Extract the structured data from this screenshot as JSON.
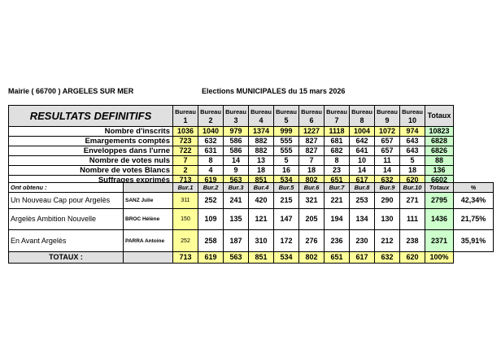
{
  "header": {
    "mairie": "Mairie ( 66700 ) ARGELES SUR MER",
    "election": "Elections MUNICIPALES du 15 mars 2026"
  },
  "top": {
    "title": "RESULTATS DEFINITIFS",
    "bureau_label": "Bureau",
    "bureaus": [
      "1",
      "2",
      "3",
      "4",
      "5",
      "6",
      "7",
      "8",
      "9",
      "10"
    ],
    "totals_label": "Totaux",
    "rows": [
      {
        "label": "Nombre d'inscrits",
        "values": [
          "1036",
          "1040",
          "979",
          "1374",
          "999",
          "1227",
          "1118",
          "1004",
          "1072",
          "974"
        ],
        "total": "10823"
      },
      {
        "label": "Emargements comptés",
        "values": [
          "723",
          "632",
          "586",
          "882",
          "555",
          "827",
          "681",
          "642",
          "657",
          "643"
        ],
        "total": "6828"
      },
      {
        "label": "Enveloppes dans l'urne",
        "values": [
          "722",
          "631",
          "586",
          "882",
          "555",
          "827",
          "682",
          "641",
          "657",
          "643"
        ],
        "total": "6826"
      },
      {
        "label": "Nombre de votes nuls",
        "values": [
          "7",
          "8",
          "14",
          "13",
          "5",
          "7",
          "8",
          "10",
          "11",
          "5"
        ],
        "total": "88"
      },
      {
        "label": "Nombre de votes Blancs",
        "values": [
          "2",
          "4",
          "9",
          "18",
          "16",
          "18",
          "23",
          "14",
          "14",
          "18"
        ],
        "total": "136"
      },
      {
        "label": "Suffrages exprimés",
        "values": [
          "713",
          "619",
          "563",
          "851",
          "534",
          "802",
          "651",
          "617",
          "632",
          "620"
        ],
        "total": "6602"
      }
    ]
  },
  "bottom": {
    "ont_obtenu": "Ont obtenu :",
    "cols": [
      "Bur.1",
      "Bur.2",
      "Bur.3",
      "Bur.4",
      "Bur.5",
      "Bur.6",
      "Bur.7",
      "Bur.8",
      "Bur.9",
      "Bur.10"
    ],
    "totals_label": "Totaux",
    "pct_label": "%",
    "lists": [
      {
        "party": "Un Nouveau Cap pour Argelès",
        "candidate": "SANZ Julie",
        "values": [
          "311",
          "252",
          "241",
          "420",
          "215",
          "321",
          "221",
          "253",
          "290",
          "271"
        ],
        "total": "2795",
        "pct": "42,34%"
      },
      {
        "party": "Argelès Ambition Nouvelle",
        "candidate": "BROC Hélène",
        "values": [
          "150",
          "109",
          "135",
          "121",
          "147",
          "205",
          "194",
          "134",
          "130",
          "111"
        ],
        "total": "1436",
        "pct": "21,75%"
      },
      {
        "party": "En Avant Argelès",
        "candidate": "PARRA Antoine",
        "values": [
          "252",
          "258",
          "187",
          "310",
          "172",
          "276",
          "236",
          "230",
          "212",
          "238"
        ],
        "total": "2371",
        "pct": "35,91%"
      }
    ],
    "totaux_label": "TOTAUX :",
    "totaux": [
      "713",
      "619",
      "563",
      "851",
      "534",
      "802",
      "651",
      "617",
      "632",
      "620"
    ],
    "totaux_total": "100%"
  }
}
